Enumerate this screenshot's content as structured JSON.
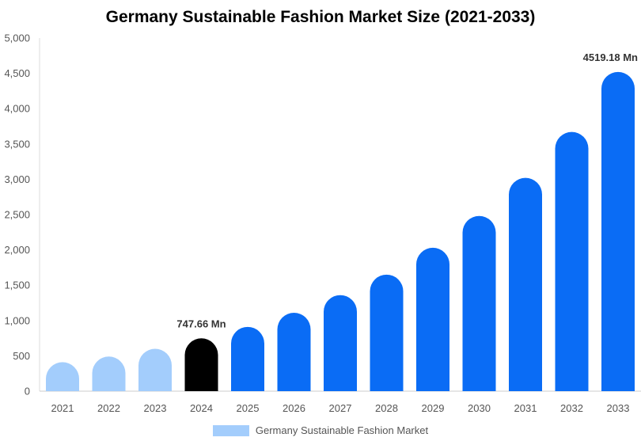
{
  "chart_data": {
    "type": "bar",
    "title": "Germany Sustainable Fashion Market Size (2021-2033)",
    "xlabel": "",
    "ylabel": "",
    "categories": [
      "2021",
      "2022",
      "2023",
      "2024",
      "2025",
      "2026",
      "2027",
      "2028",
      "2029",
      "2030",
      "2031",
      "2032",
      "2033"
    ],
    "series": [
      {
        "name": "Germany Sustainable Fashion Market",
        "values": [
          410,
          490,
          600,
          747.66,
          910,
          1110,
          1360,
          1650,
          2030,
          2480,
          3020,
          3670,
          4519.18
        ]
      }
    ],
    "ylim": [
      0,
      5000
    ],
    "yticks": [
      0,
      500,
      1000,
      1500,
      2000,
      2500,
      3000,
      3500,
      4000,
      4500,
      5000
    ],
    "ytick_labels": [
      "0",
      "500",
      "1,000",
      "1,500",
      "2,000",
      "2,500",
      "3,000",
      "3,500",
      "4,000",
      "4,500",
      "5,000"
    ],
    "bar_colors": [
      "#a3cdfc",
      "#a3cdfc",
      "#a3cdfc",
      "#000000",
      "#0a6cf5",
      "#0a6cf5",
      "#0a6cf5",
      "#0a6cf5",
      "#0a6cf5",
      "#0a6cf5",
      "#0a6cf5",
      "#0a6cf5",
      "#0a6cf5"
    ],
    "data_labels": [
      {
        "index": 3,
        "text": "747.66 Mn"
      },
      {
        "index": 12,
        "text": "4519.18 Mn"
      }
    ],
    "legend": {
      "label": "Germany Sustainable Fashion Market",
      "color": "#a3cdfc",
      "position": "bottom"
    },
    "grid": false
  }
}
